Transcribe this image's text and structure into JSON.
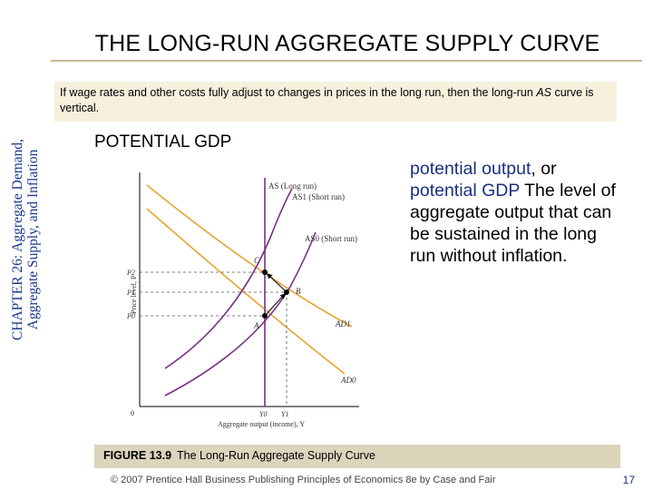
{
  "sidebar": {
    "line1": "CHAPTER 26: Aggregate Demand,",
    "line2": "Aggregate Supply, and Inflation"
  },
  "title": "THE LONG-RUN AGGREGATE SUPPLY CURVE",
  "intro": {
    "before": "If wage rates and other costs fully adjust to changes in prices in the long run, then the long-run ",
    "italic": "AS",
    "after": " curve is vertical."
  },
  "subheading": "POTENTIAL GDP",
  "definition": {
    "term1": "potential output",
    "sep": ", or ",
    "term2": "potential GDP",
    "text": " The level of aggregate output that can be sustained in the long run without inflation."
  },
  "figure": {
    "curve_labels": {
      "as_long_run": "AS (Long run)",
      "as1_short_run": "AS1 (Short run)",
      "as0_short_run": "AS0 (Short run)",
      "ad1": "AD1",
      "ad0": "AD0"
    },
    "point_labels": {
      "c": "C",
      "b": "B",
      "a": "A"
    },
    "price_labels": {
      "p2": "P2",
      "p1": "P1",
      "p0": "P0"
    },
    "output_labels": {
      "y0": "Y0",
      "y1": "Y1"
    },
    "origin": "0",
    "ylabel": "Price level, P",
    "xlabel": "Aggregate output (income), Y"
  },
  "caption": {
    "figure_no": "FIGURE 13.9",
    "text": "The Long-Run Aggregate Supply Curve"
  },
  "footer": "© 2007 Prentice Hall Business Publishing   Principles of Economics 8e by Case and Fair",
  "page_number": "17",
  "colors": {
    "supply_curve": "#7a2f86",
    "demand_curve": "#e8a330",
    "definition_term": "#1a2f80",
    "sidebar_text": "#1a3a8c"
  }
}
